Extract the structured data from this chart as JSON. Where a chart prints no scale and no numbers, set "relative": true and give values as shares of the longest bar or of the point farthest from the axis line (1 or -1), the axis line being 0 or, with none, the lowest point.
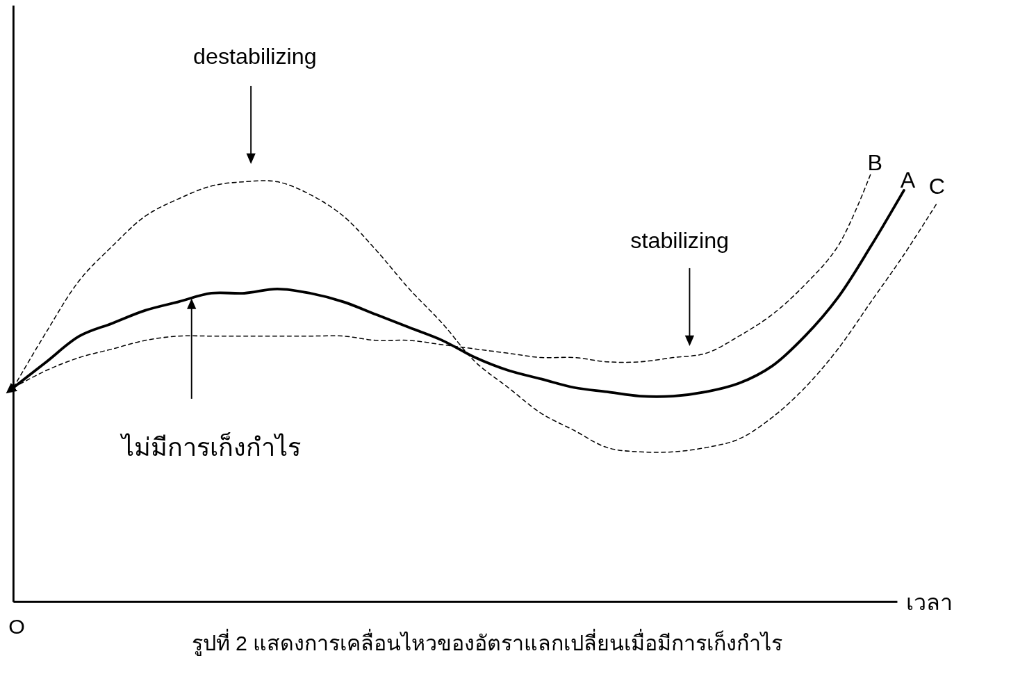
{
  "chart_data": {
    "type": "line",
    "relative": true,
    "xlabel": "เวลา",
    "categories": [
      null,
      null,
      null,
      null,
      null,
      null,
      null,
      null,
      null,
      null,
      null,
      null,
      null,
      null,
      null,
      null,
      null,
      null,
      null,
      null,
      null,
      null,
      null,
      null,
      null,
      null,
      null,
      null,
      null
    ],
    "series": [
      {
        "name": "A",
        "color": "#000000",
        "line_style": "solid",
        "values": [
          0.5,
          0.56,
          0.62,
          0.65,
          0.68,
          0.7,
          0.72,
          0.72,
          0.73,
          0.72,
          0.7,
          0.67,
          0.64,
          0.61,
          0.57,
          0.54,
          0.52,
          0.5,
          0.49,
          0.48,
          0.48,
          0.49,
          0.51,
          0.55,
          0.62,
          0.71,
          0.83,
          0.96,
          null
        ]
      },
      {
        "name": "B",
        "color": "#000000",
        "line_style": "dashed",
        "values": [
          0.5,
          0.54,
          0.57,
          0.59,
          0.61,
          0.62,
          0.62,
          0.62,
          0.62,
          0.62,
          0.62,
          0.61,
          0.61,
          0.6,
          0.59,
          0.58,
          0.57,
          0.57,
          0.56,
          0.56,
          0.57,
          0.58,
          0.62,
          0.67,
          0.74,
          0.83,
          1.0,
          null,
          null
        ]
      },
      {
        "name": "C",
        "color": "#000000",
        "line_style": "dashed",
        "values": [
          0.5,
          0.63,
          0.75,
          0.83,
          0.9,
          0.94,
          0.97,
          0.98,
          0.98,
          0.95,
          0.9,
          0.82,
          0.73,
          0.65,
          0.56,
          0.5,
          0.44,
          0.4,
          0.36,
          0.35,
          0.35,
          0.36,
          0.38,
          0.43,
          0.5,
          0.59,
          0.7,
          0.81,
          0.93
        ]
      }
    ],
    "annotations": [
      "destabilizing",
      "stabilizing",
      "ไม่มีการเก็งกำไร",
      "O",
      "รูปที่ 2 แสดงการเคลื่อนไหวของอัตราแลกเปลี่ยนเมื่อมีการเก็งกำไร"
    ]
  }
}
